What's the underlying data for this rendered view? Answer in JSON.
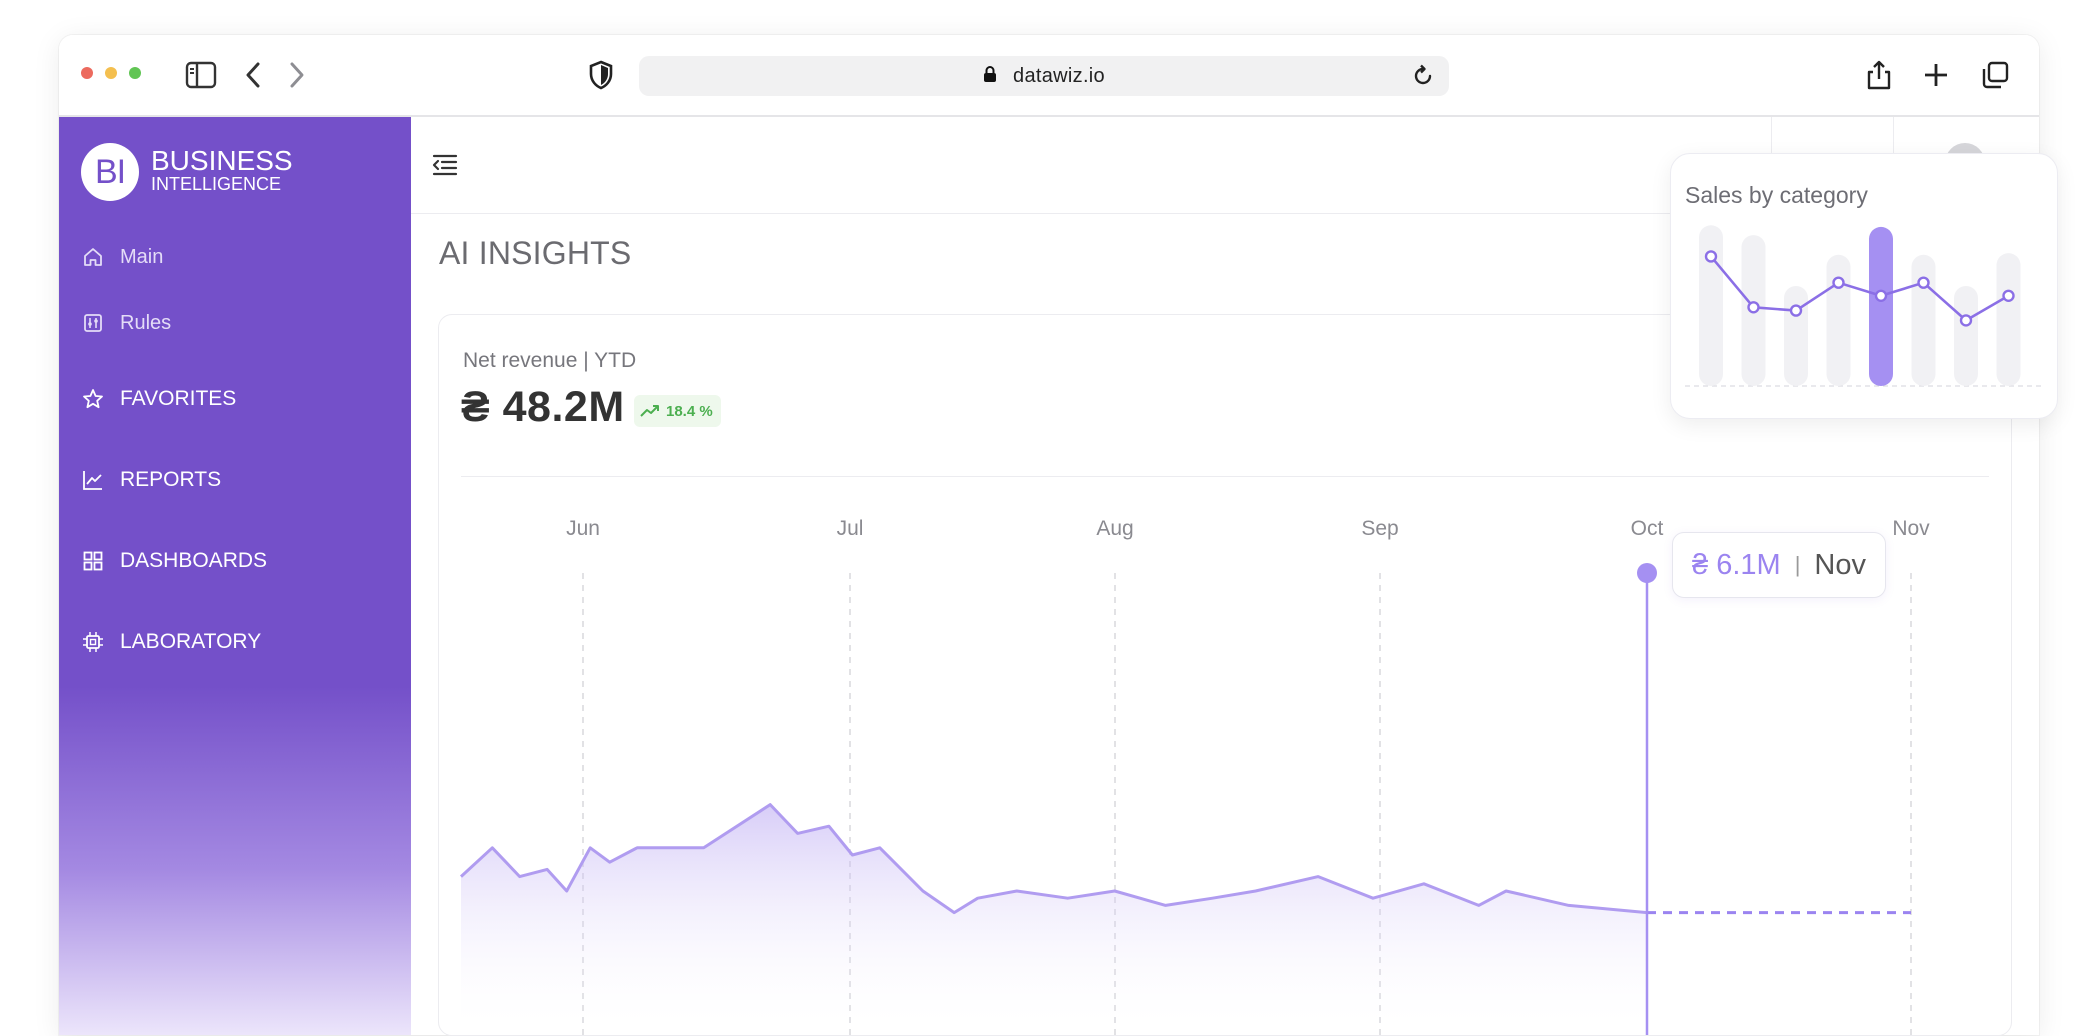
{
  "browser": {
    "url": "datawiz.io",
    "traffic_lights": [
      "#ec6a5e",
      "#f4bf4f",
      "#61c554"
    ]
  },
  "brand": {
    "logo_initials": "BI",
    "line1": "BUSINESS",
    "line2": "INTELLIGENCE"
  },
  "sidebar": {
    "items": [
      {
        "label": "Main",
        "icon": "home-icon"
      },
      {
        "label": "Rules",
        "icon": "rules-icon"
      },
      {
        "label": "FAVORITES",
        "icon": "star-icon"
      },
      {
        "label": "REPORTS",
        "icon": "line-chart-icon"
      },
      {
        "label": "DASHBOARDS",
        "icon": "grid-icon"
      },
      {
        "label": "LABORATORY",
        "icon": "chip-icon"
      }
    ]
  },
  "page": {
    "title": "AI INSIGHTS"
  },
  "revenue_card": {
    "label": "Net revenue | YTD",
    "value": "₴ 48.2M",
    "change": "18.4 %",
    "change_color": "#4caf50"
  },
  "tooltip": {
    "value": "₴ 6.1M",
    "separator": "|",
    "month": "Nov"
  },
  "sales_card": {
    "title": "Sales by category"
  },
  "colors": {
    "accent": "#7450c9",
    "line": "#a993ee",
    "highlight": "#a590f2"
  },
  "chart_data": [
    {
      "type": "area",
      "categories": [
        "Jun",
        "Jul",
        "Aug",
        "Sep",
        "Oct",
        "Nov"
      ],
      "series": [
        {
          "points": [
            [
              0,
              0.78
            ],
            [
              0.08,
              0.74
            ],
            [
              0.15,
              0.78
            ],
            [
              0.22,
              0.77
            ],
            [
              0.27,
              0.8
            ],
            [
              0.33,
              0.74
            ],
            [
              0.38,
              0.76
            ],
            [
              0.45,
              0.74
            ],
            [
              0.62,
              0.74
            ],
            [
              0.79,
              0.68
            ],
            [
              0.86,
              0.72
            ],
            [
              0.94,
              0.71
            ],
            [
              1.0,
              0.75
            ],
            [
              1.07,
              0.74
            ],
            [
              1.18,
              0.8
            ],
            [
              1.26,
              0.83
            ],
            [
              1.32,
              0.81
            ],
            [
              1.42,
              0.8
            ],
            [
              1.55,
              0.81
            ],
            [
              1.67,
              0.8
            ],
            [
              1.8,
              0.82
            ],
            [
              1.92,
              0.81
            ],
            [
              2.03,
              0.8
            ],
            [
              2.19,
              0.78
            ],
            [
              2.33,
              0.81
            ],
            [
              2.46,
              0.79
            ],
            [
              2.6,
              0.82
            ],
            [
              2.67,
              0.8
            ],
            [
              2.83,
              0.82
            ],
            [
              3.03,
              0.83
            ],
            [
              3.03,
              0.83
            ]
          ]
        }
      ],
      "highlight": {
        "month": "Nov",
        "value": "₴ 6.1M"
      }
    },
    {
      "type": "bar",
      "title": "Sales by category",
      "bars": [
        0.98,
        0.92,
        0.61,
        0.8,
        0.97,
        0.8,
        0.61,
        0.81
      ],
      "line": [
        0.79,
        0.48,
        0.46,
        0.63,
        0.55,
        0.63,
        0.4,
        0.55
      ],
      "highlight_index": 4
    }
  ]
}
